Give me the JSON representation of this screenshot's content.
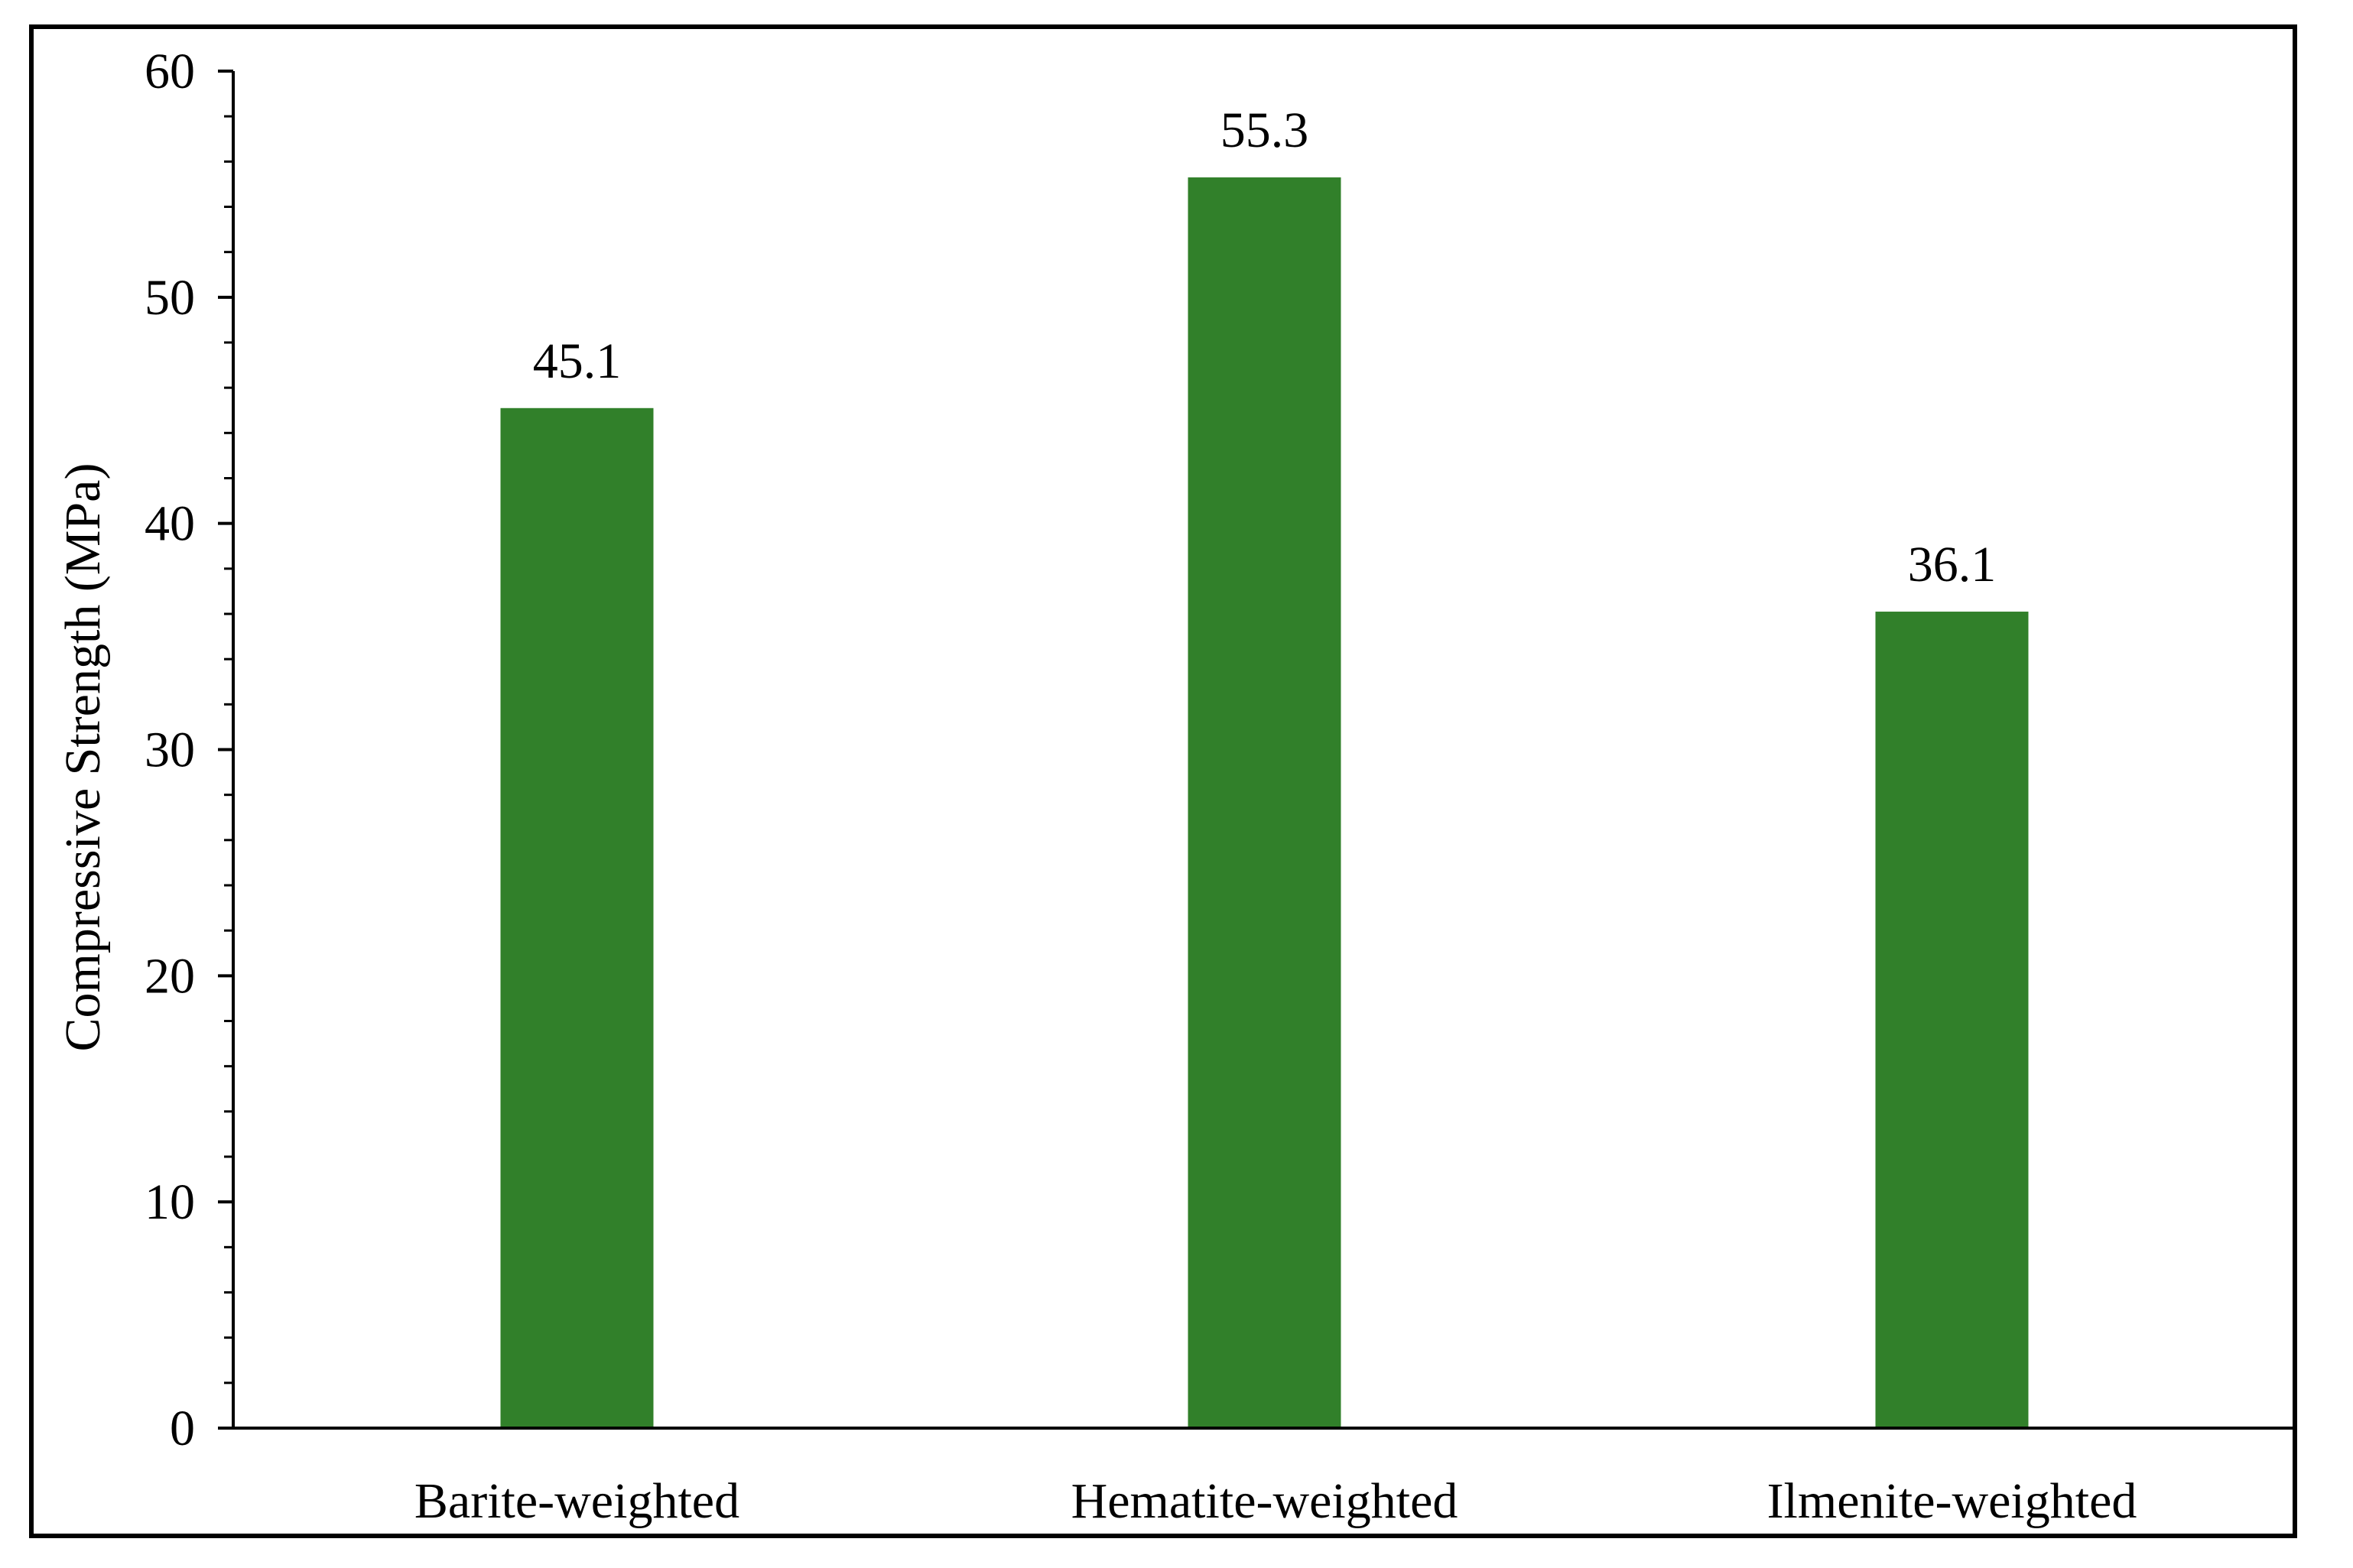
{
  "chart_data": {
    "type": "bar",
    "title": "",
    "xlabel": "",
    "ylabel": "Compressive Strength (MPa)",
    "categories": [
      "Barite-weighted",
      "Hematite-weighted",
      "Ilmenite-weighted"
    ],
    "values": [
      45.1,
      55.3,
      36.1
    ],
    "data_labels": [
      "45.1",
      "55.3",
      "36.1"
    ],
    "ylim": [
      0,
      60
    ],
    "y_major_ticks": [
      0,
      10,
      20,
      30,
      40,
      50,
      60
    ],
    "y_tick_labels": [
      "0",
      "10",
      "20",
      "30",
      "40",
      "50",
      "60"
    ],
    "y_minor_step": 2,
    "grid": false,
    "legend": "none",
    "bar_color": "#31802A",
    "axis_color": "#000000"
  }
}
